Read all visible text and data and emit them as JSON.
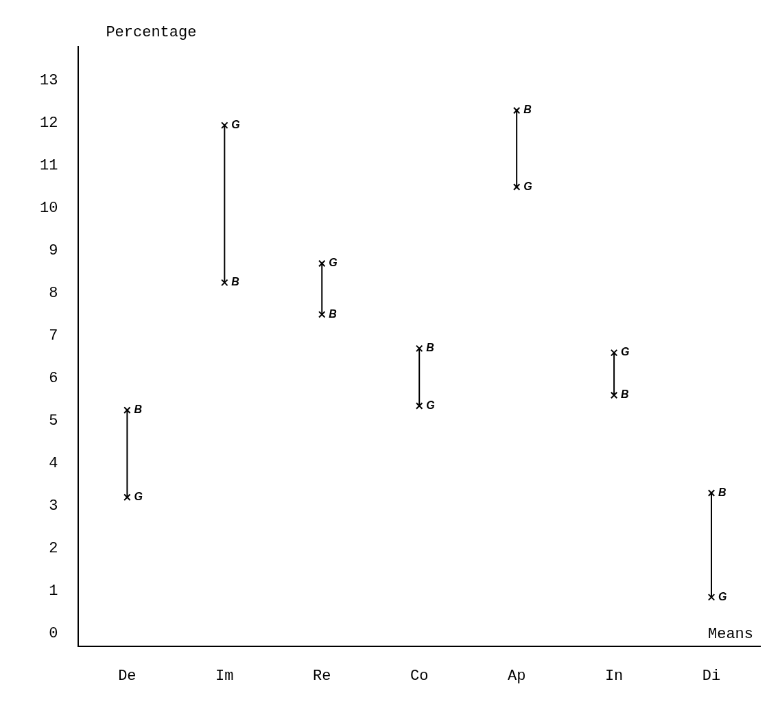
{
  "chart_data": {
    "type": "scatter",
    "ylabel": "Percentage",
    "xlabel": "Means",
    "categories": [
      "De",
      "Im",
      "Re",
      "Co",
      "Ap",
      "In",
      "Di"
    ],
    "series": [
      {
        "name": "G",
        "color": "#000000",
        "values": [
          3.2,
          11.95,
          8.7,
          5.35,
          10.5,
          6.6,
          0.85
        ]
      },
      {
        "name": "B",
        "color": "#000000",
        "values": [
          5.25,
          8.25,
          7.5,
          6.7,
          12.3,
          5.6,
          3.3
        ]
      }
    ],
    "ylim": [
      -0.3,
      13.8
    ],
    "yticks": [
      0,
      1,
      2,
      3,
      4,
      5,
      6,
      7,
      8,
      9,
      10,
      11,
      12,
      13
    ],
    "grid": false,
    "legend": false,
    "marker": "cross"
  }
}
